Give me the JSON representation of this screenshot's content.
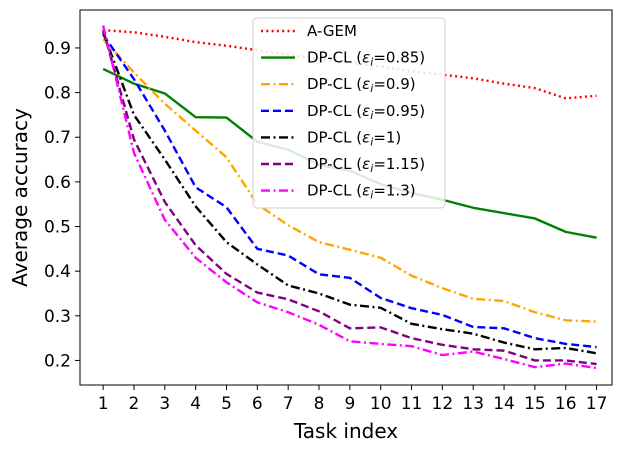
{
  "chart_data": {
    "type": "line",
    "title": "",
    "xlabel": "Task index",
    "ylabel": "Average accuracy",
    "x": [
      1,
      2,
      3,
      4,
      5,
      6,
      7,
      8,
      9,
      10,
      11,
      12,
      13,
      14,
      15,
      16,
      17
    ],
    "xlim": [
      0.25,
      17.5
    ],
    "ylim": [
      0.145,
      0.985
    ],
    "xticks": [
      "1",
      "2",
      "3",
      "4",
      "5",
      "6",
      "7",
      "8",
      "9",
      "10",
      "11",
      "12",
      "13",
      "14",
      "15",
      "16",
      "17"
    ],
    "yticks": [
      "0.2",
      "0.3",
      "0.4",
      "0.5",
      "0.6",
      "0.7",
      "0.8",
      "0.9"
    ],
    "ytick_values": [
      0.2,
      0.3,
      0.4,
      0.5,
      0.6,
      0.7,
      0.8,
      0.9
    ],
    "grid": false,
    "legend_position": "top-center",
    "series": [
      {
        "name": "A-GEM",
        "color": "#ff0000",
        "style": "dotted",
        "values": [
          0.94,
          0.935,
          0.925,
          0.913,
          0.905,
          0.895,
          0.885,
          0.875,
          0.868,
          0.858,
          0.848,
          0.84,
          0.832,
          0.82,
          0.81,
          0.787,
          0.793
        ]
      },
      {
        "name": "DP-CL (εi=0.85)",
        "color": "#008000",
        "style": "solid",
        "values": [
          0.853,
          0.82,
          0.798,
          0.745,
          0.744,
          0.69,
          0.672,
          0.638,
          0.625,
          0.595,
          0.575,
          0.56,
          0.542,
          0.53,
          0.518,
          0.488,
          0.475
        ]
      },
      {
        "name": "DP-CL (εi=0.9)",
        "color": "#ffa500",
        "style": "dashdot",
        "values": [
          0.92,
          0.845,
          0.775,
          0.715,
          0.655,
          0.55,
          0.503,
          0.465,
          0.448,
          0.43,
          0.39,
          0.362,
          0.338,
          0.333,
          0.308,
          0.29,
          0.287
        ]
      },
      {
        "name": "DP-CL (εi=0.95)",
        "color": "#0000ff",
        "style": "dashed",
        "values": [
          0.93,
          0.83,
          0.715,
          0.588,
          0.543,
          0.45,
          0.435,
          0.393,
          0.385,
          0.34,
          0.317,
          0.302,
          0.275,
          0.272,
          0.25,
          0.237,
          0.23
        ]
      },
      {
        "name": "DP-CL (εi=1)",
        "color": "#000000",
        "style": "dashdot",
        "values": [
          0.935,
          0.75,
          0.65,
          0.545,
          0.465,
          0.415,
          0.368,
          0.35,
          0.325,
          0.318,
          0.282,
          0.27,
          0.26,
          0.24,
          0.225,
          0.228,
          0.216
        ]
      },
      {
        "name": "DP-CL (εi=1.15)",
        "color": "#800080",
        "style": "dashed",
        "values": [
          0.94,
          0.695,
          0.555,
          0.458,
          0.394,
          0.352,
          0.337,
          0.31,
          0.272,
          0.274,
          0.25,
          0.235,
          0.225,
          0.222,
          0.2,
          0.2,
          0.192
        ]
      },
      {
        "name": "DP-CL (εi=1.3)",
        "color": "#ff00ff",
        "style": "dashdot",
        "values": [
          0.95,
          0.665,
          0.515,
          0.43,
          0.375,
          0.33,
          0.308,
          0.28,
          0.243,
          0.237,
          0.232,
          0.212,
          0.22,
          0.203,
          0.185,
          0.193,
          0.183
        ]
      }
    ],
    "legend": [
      {
        "prefix": "A-GEM",
        "eps": "",
        "suffix": ""
      },
      {
        "prefix": "DP-CL (",
        "eps": "=0.85",
        "suffix": ")"
      },
      {
        "prefix": "DP-CL (",
        "eps": "=0.9",
        "suffix": ")"
      },
      {
        "prefix": "DP-CL (",
        "eps": "=0.95",
        "suffix": ")"
      },
      {
        "prefix": "DP-CL (",
        "eps": "=1",
        "suffix": ")"
      },
      {
        "prefix": "DP-CL (",
        "eps": "=1.15",
        "suffix": ")"
      },
      {
        "prefix": "DP-CL (",
        "eps": "=1.3",
        "suffix": ")"
      }
    ]
  }
}
